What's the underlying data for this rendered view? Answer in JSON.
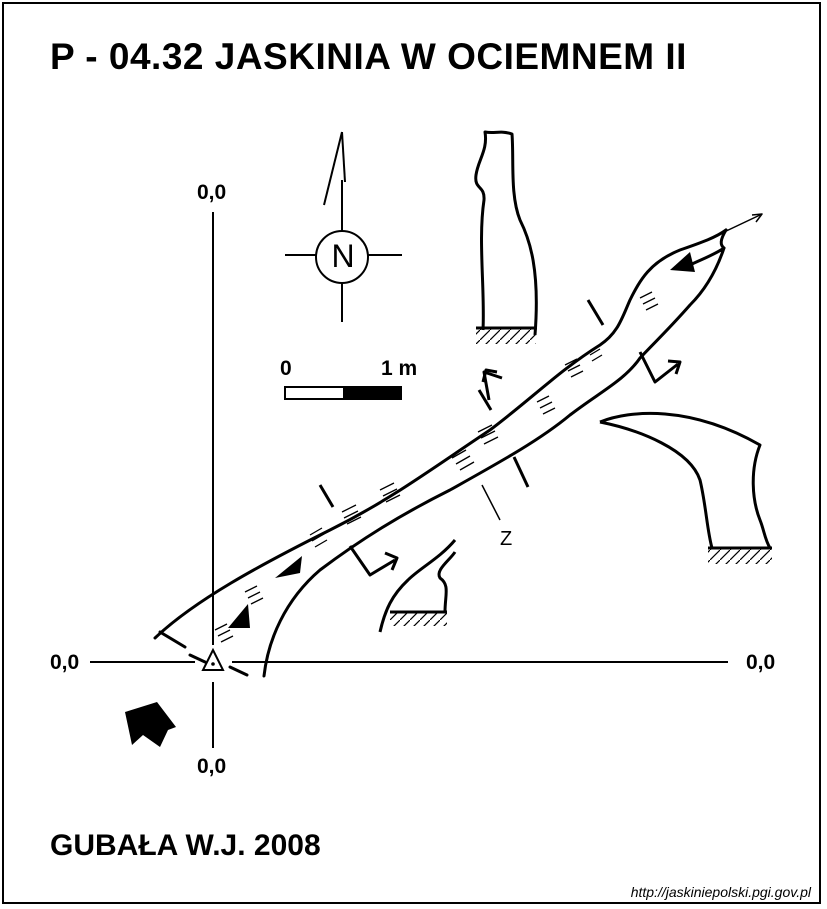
{
  "title": "P - 04.32  JASKINIA W OCIEMNEM II",
  "author": "GUBAŁA W.J. 2008",
  "source_url": "http://jaskiniepolski.pgi.gov.pl",
  "axes": {
    "top": "0,0",
    "bottom": "0,0",
    "left": "0,0",
    "right": "0,0"
  },
  "scale_bar": {
    "start_label": "0",
    "end_label": "1 m"
  },
  "compass": {
    "label": "N"
  },
  "section_label": "Z"
}
